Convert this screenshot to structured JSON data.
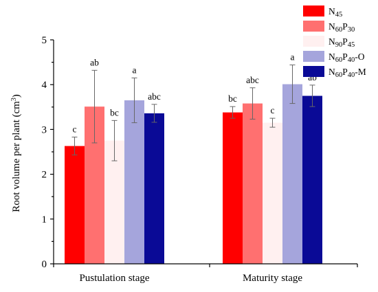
{
  "chart_data": {
    "type": "bar",
    "ylabel": "Root volume per plant (cm³)",
    "ylabel_parts": {
      "text": "Root volume per plant (cm",
      "sup": "3",
      "close": ")"
    },
    "ylim": [
      0,
      5
    ],
    "yticks": [
      0,
      1,
      2,
      3,
      4,
      5
    ],
    "grid": false,
    "legend_position": "top-right",
    "categories": [
      "Pustulation stage",
      "Maturity stage"
    ],
    "series": [
      {
        "name": "N45",
        "label_parts": [
          [
            "N",
            ""
          ],
          [
            "45",
            "sub"
          ]
        ],
        "color": "#ff0000",
        "values": [
          2.63,
          3.38
        ],
        "errors": [
          0.2,
          0.13
        ],
        "significance": [
          "c",
          "bc"
        ]
      },
      {
        "name": "N60P30",
        "label_parts": [
          [
            "N",
            ""
          ],
          [
            "60",
            "sub"
          ],
          [
            "P",
            ""
          ],
          [
            "30",
            "sub"
          ]
        ],
        "color": "#ff7070",
        "values": [
          3.51,
          3.58
        ],
        "errors": [
          0.81,
          0.35
        ],
        "significance": [
          "ab",
          "abc"
        ]
      },
      {
        "name": "N90P45",
        "label_parts": [
          [
            "N",
            ""
          ],
          [
            "90",
            "sub"
          ],
          [
            "P",
            ""
          ],
          [
            "45",
            "sub"
          ]
        ],
        "color": "#fff0f0",
        "values": [
          2.75,
          3.15
        ],
        "errors": [
          0.45,
          0.1
        ],
        "significance": [
          "bc",
          "c"
        ]
      },
      {
        "name": "N60P40-O",
        "label_parts": [
          [
            "N",
            ""
          ],
          [
            "60",
            "sub"
          ],
          [
            "P",
            ""
          ],
          [
            "40",
            "sub"
          ],
          [
            "-O",
            ""
          ]
        ],
        "color": "#a5a5dc",
        "values": [
          3.65,
          4.01
        ],
        "errors": [
          0.5,
          0.43
        ],
        "significance": [
          "a",
          "a"
        ]
      },
      {
        "name": "N60P40-M",
        "label_parts": [
          [
            "N",
            ""
          ],
          [
            "60",
            "sub"
          ],
          [
            "P",
            ""
          ],
          [
            "40",
            "sub"
          ],
          [
            "-M",
            ""
          ]
        ],
        "color": "#0a0a96",
        "values": [
          3.36,
          3.75
        ],
        "errors": [
          0.2,
          0.24
        ],
        "significance": [
          "abc",
          "ab"
        ]
      }
    ]
  }
}
